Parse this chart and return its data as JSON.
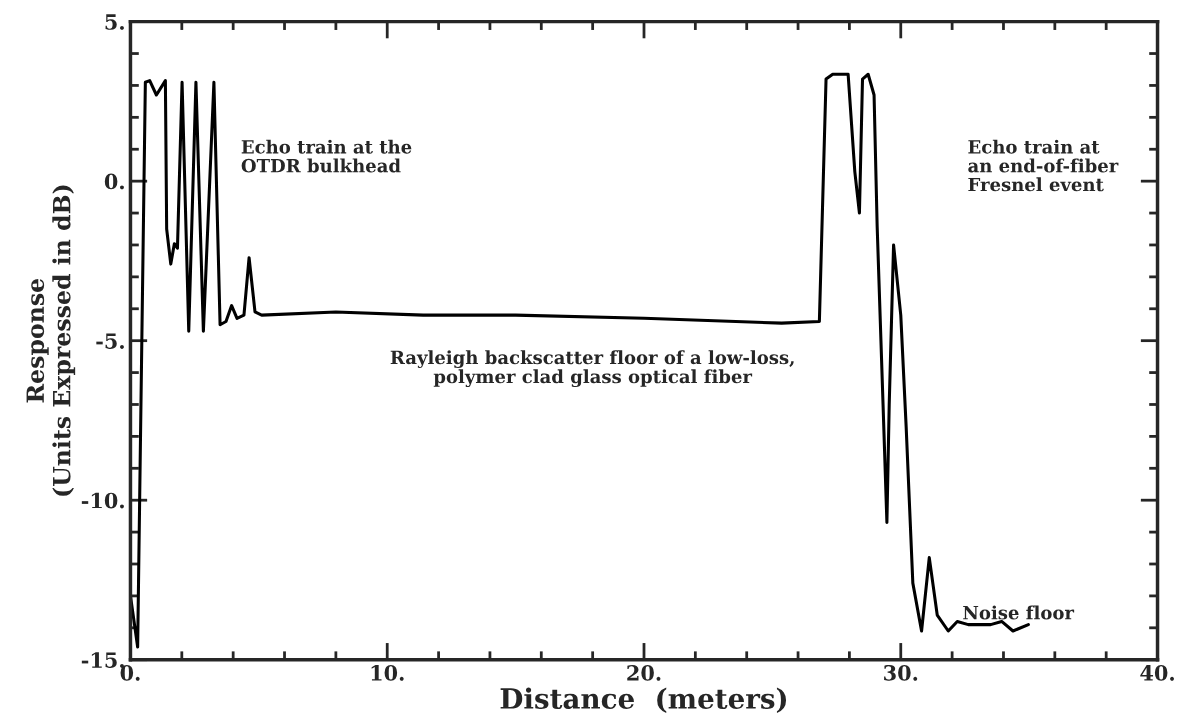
{
  "chart_data": {
    "type": "line",
    "xlabel": "Distance  (meters)",
    "ylabel": "Response\n(Units Expressed in dB)",
    "xlim": [
      0,
      40
    ],
    "ylim": [
      -15,
      5
    ],
    "xticks": [
      {
        "value": 0,
        "label": "0."
      },
      {
        "value": 10,
        "label": "10."
      },
      {
        "value": 20,
        "label": "20."
      },
      {
        "value": 30,
        "label": "30."
      },
      {
        "value": 40,
        "label": "40."
      }
    ],
    "yticks": [
      {
        "value": -15,
        "label": "-15."
      },
      {
        "value": -10,
        "label": "-10."
      },
      {
        "value": -5,
        "label": "-5."
      },
      {
        "value": 0,
        "label": "0."
      },
      {
        "value": 5,
        "label": "5."
      }
    ],
    "grid": false,
    "legend": false,
    "marker": "none",
    "line_style": "solid",
    "series": [
      {
        "color": "#000000",
        "x": [
          0,
          0.28,
          0.58,
          0.75,
          1.01,
          1.36,
          1.41,
          1.57,
          1.71,
          1.83,
          2.01,
          2.27,
          2.55,
          2.84,
          3.25,
          3.49,
          3.72,
          3.94,
          4.15,
          4.42,
          4.62,
          4.85,
          5.11,
          8.0,
          11.4,
          15.0,
          20.0,
          25.36,
          26.83,
          27.09,
          27.35,
          27.95,
          28.21,
          28.39,
          28.51,
          28.73,
          28.96,
          29.08,
          29.31,
          29.46,
          29.55,
          29.72,
          30.0,
          30.21,
          30.47,
          30.81,
          31.11,
          31.42,
          31.85,
          32.2,
          32.63,
          33.07,
          33.5,
          33.93,
          34.37,
          34.97
        ],
        "values": [
          -13.0,
          -14.6,
          3.1,
          3.15,
          2.7,
          3.15,
          -1.5,
          -2.6,
          -1.96,
          -2.1,
          3.1,
          -4.7,
          3.1,
          -4.7,
          3.1,
          -4.5,
          -4.4,
          -3.9,
          -4.3,
          -4.2,
          -2.4,
          -4.1,
          -4.2,
          -4.1,
          -4.2,
          -4.2,
          -4.3,
          -4.45,
          -4.4,
          3.2,
          3.35,
          3.35,
          0.3,
          -1.0,
          3.2,
          3.35,
          2.7,
          -1.4,
          -7.0,
          -10.7,
          -7.0,
          -2.0,
          -4.2,
          -7.7,
          -12.6,
          -14.1,
          -11.8,
          -13.6,
          -14.1,
          -13.8,
          -13.9,
          -13.9,
          -13.9,
          -13.8,
          -14.1,
          -13.9
        ]
      }
    ],
    "annotations": [
      "Echo train at the\nOTDR bulkhead",
      "Echo train at\nan end-of-fiber\nFresnel event",
      "Rayleigh backscatter floor of a low-loss,\npolymer clad glass optical fiber",
      "Noise floor"
    ]
  }
}
